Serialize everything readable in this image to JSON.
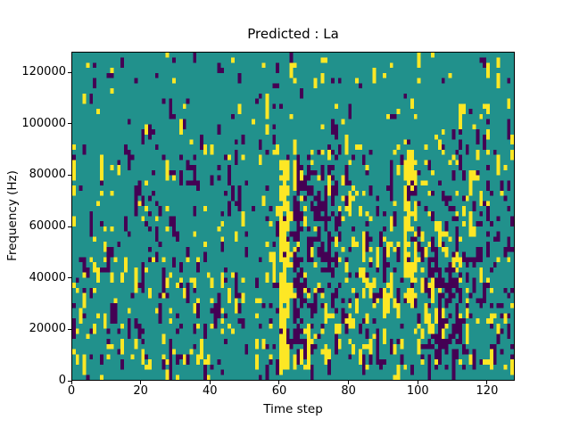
{
  "figure": {
    "background": "#ffffff",
    "text_color": "#000000"
  },
  "chart_data": {
    "type": "heatmap",
    "title": "Predicted : La",
    "xlabel": "Time step",
    "ylabel": "Frequency (Hz)",
    "x_range": [
      0,
      128
    ],
    "y_range": [
      0,
      128000
    ],
    "x_ticks": [
      0,
      20,
      40,
      60,
      80,
      100,
      120
    ],
    "y_ticks": [
      0,
      20000,
      40000,
      60000,
      80000,
      100000,
      120000
    ],
    "grid": {
      "cols": 128,
      "rows": 64
    },
    "grid_on": false,
    "legend": "none",
    "colormap": {
      "name": "viridis-3-level",
      "low": "#440154",
      "mid": "#21918c",
      "high": "#fde725"
    },
    "render": {
      "note": "cells estimated from screenshot; r0/r1 are rows from top (row 0 = 128000 Hz), y/p = yellow/purple probability, later regions override earlier",
      "seed": 42,
      "run_prob": 0.38,
      "regions": [
        {
          "c0": 0,
          "c1": 127,
          "r0": 0,
          "r1": 63,
          "y": 0.04,
          "p": 0.045
        },
        {
          "c0": 0,
          "c1": 127,
          "r0": 0,
          "r1": 17,
          "y": 0.028,
          "p": 0.03
        },
        {
          "c0": 0,
          "c1": 55,
          "r0": 40,
          "r1": 62,
          "y": 0.085,
          "p": 0.075
        },
        {
          "c0": 56,
          "c1": 95,
          "r0": 32,
          "r1": 62,
          "y": 0.1,
          "p": 0.1
        },
        {
          "c0": 64,
          "c1": 127,
          "r0": 18,
          "r1": 31,
          "y": 0.06,
          "p": 0.09
        },
        {
          "c0": 100,
          "c1": 127,
          "r0": 32,
          "r1": 62,
          "y": 0.09,
          "p": 0.13
        },
        {
          "c0": 112,
          "c1": 123,
          "r0": 10,
          "r1": 17,
          "y": 0.09,
          "p": 0.09
        },
        {
          "c0": 64,
          "c1": 75,
          "r0": 22,
          "r1": 34,
          "y": 0.06,
          "p": 0.3
        },
        {
          "c0": 64,
          "c1": 66,
          "r0": 32,
          "r1": 56,
          "y": 0.04,
          "p": 0.5
        },
        {
          "c0": 67,
          "c1": 75,
          "r0": 35,
          "r1": 50,
          "y": 0.08,
          "p": 0.28
        },
        {
          "c0": 83,
          "c1": 89,
          "r0": 30,
          "r1": 60,
          "y": 0.16,
          "p": 0.1
        },
        {
          "c0": 60,
          "c1": 62,
          "r0": 21,
          "r1": 61,
          "y": 0.82,
          "p": 0.06
        },
        {
          "c0": 96,
          "c1": 99,
          "r0": 19,
          "r1": 48,
          "y": 0.55,
          "p": 0.08
        },
        {
          "c0": 103,
          "c1": 112,
          "r0": 40,
          "r1": 60,
          "y": 0.1,
          "p": 0.38
        },
        {
          "c0": 0,
          "c1": 127,
          "r0": 62,
          "r1": 63,
          "y": 0.025,
          "p": 0.02
        }
      ]
    }
  }
}
